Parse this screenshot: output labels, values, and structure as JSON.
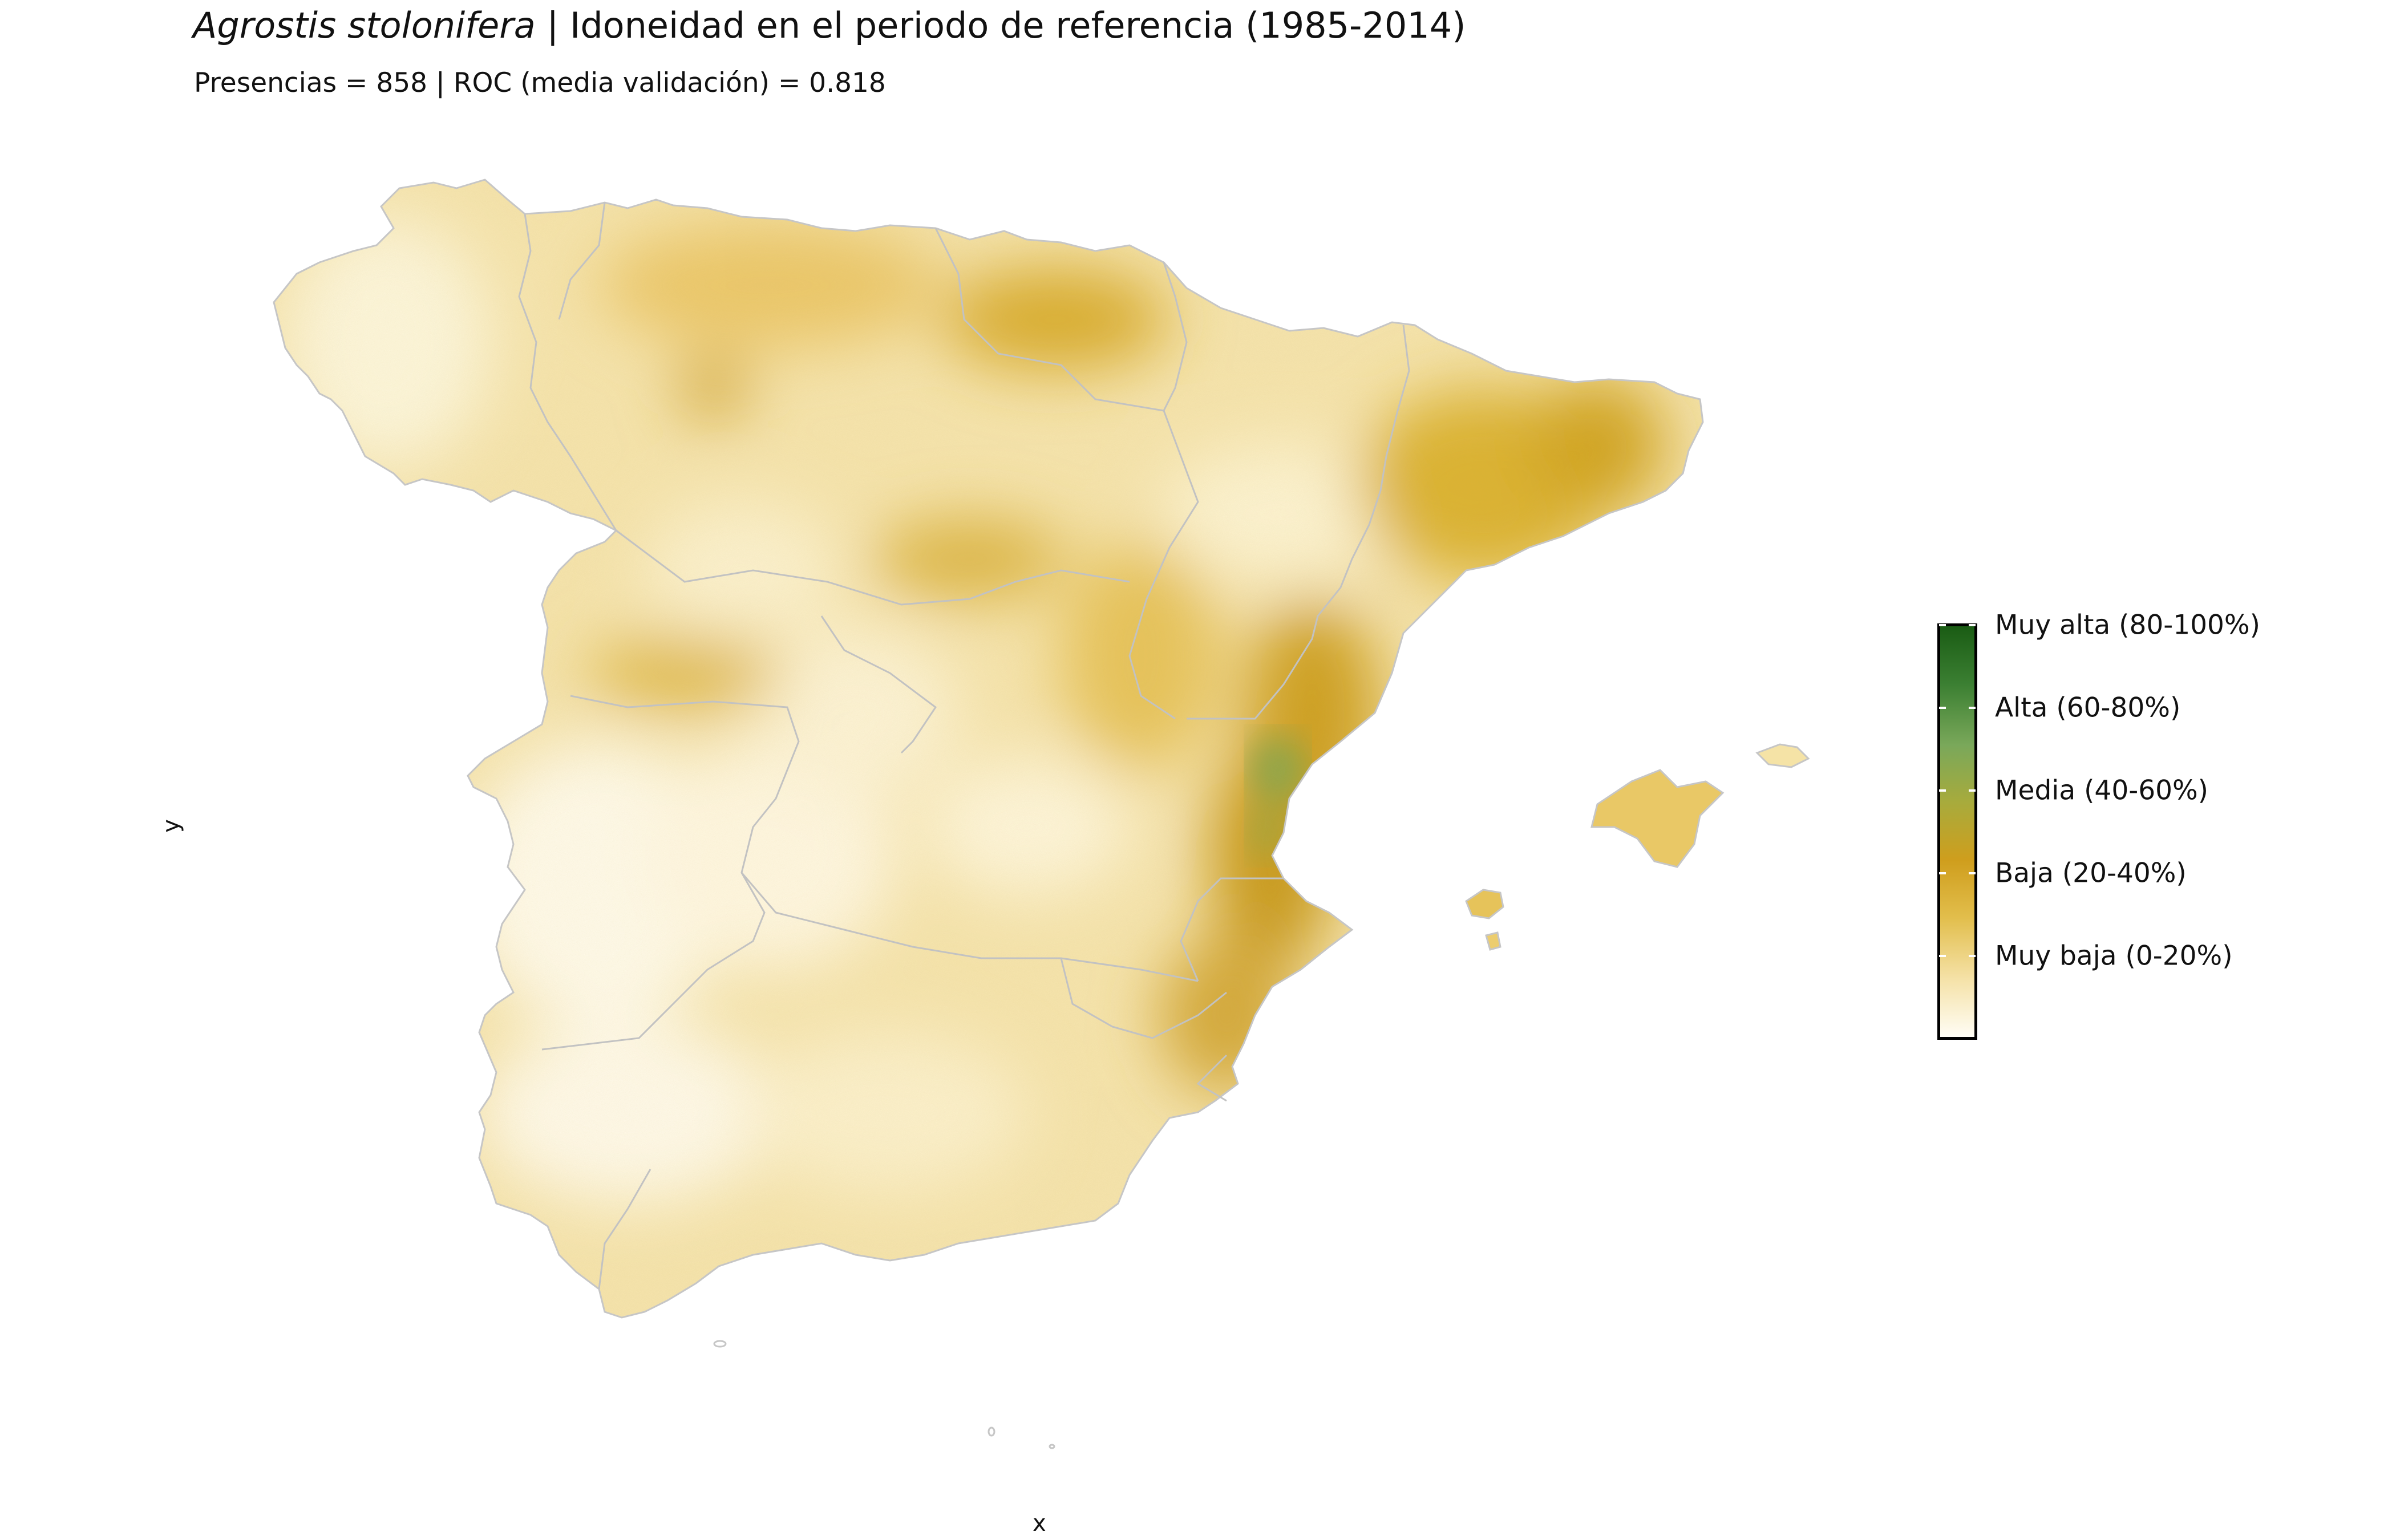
{
  "title": {
    "species": "Agrostis stolonifera",
    "separator": " | ",
    "text": "Idoneidad en el periodo de referencia (1985-2014)"
  },
  "subtitle": "Presencias = 858  |  ROC (media validación) = 0.818",
  "axes": {
    "x_label": "x",
    "y_label": "y"
  },
  "legend": {
    "colors": [
      "#fffdf5",
      "#f5e2a8",
      "#e2be4c",
      "#cf9e1d",
      "#a8ab3c",
      "#7aa85a",
      "#3b7f32",
      "#1a5c14"
    ],
    "labels": [
      "Muy alta (80-100%)",
      "Alta (60-80%)",
      "Media (40-60%)",
      "Baja (20-40%)",
      "Muy baja (0-20%)"
    ]
  },
  "map": {
    "region": "Península Ibérica (España) e Islas Baleares",
    "border_color": "#c8c8c8"
  }
}
